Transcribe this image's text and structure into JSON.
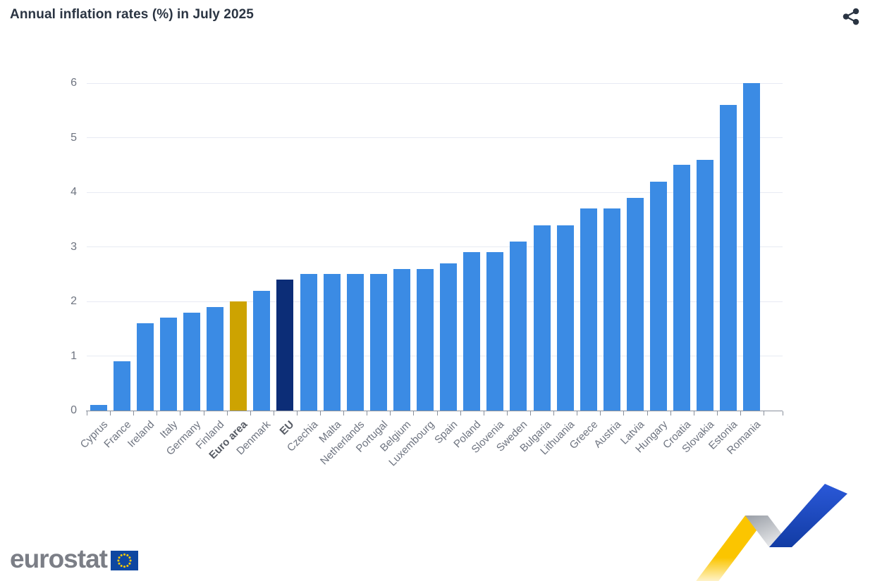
{
  "title": "Annual inflation rates (%) in July 2025",
  "header": {
    "share_icon": "share-icon"
  },
  "chart_data": {
    "type": "bar",
    "title": "Annual inflation rates (%) in July 2025",
    "categories": [
      "Cyprus",
      "France",
      "Ireland",
      "Italy",
      "Germany",
      "Finland",
      "Euro area",
      "Denmark",
      "EU",
      "Czechia",
      "Malta",
      "Netherlands",
      "Portugal",
      "Belgium",
      "Luxembourg",
      "Spain",
      "Poland",
      "Slovenia",
      "Sweden",
      "Bulgaria",
      "Lithuania",
      "Greece",
      "Austria",
      "Latvia",
      "Hungary",
      "Croatia",
      "Slovakia",
      "Estonia",
      "Romania"
    ],
    "values": [
      0.1,
      0.9,
      1.6,
      1.7,
      1.8,
      1.9,
      2.0,
      2.2,
      2.4,
      2.5,
      2.5,
      2.5,
      2.5,
      2.6,
      2.6,
      2.7,
      2.9,
      2.9,
      3.1,
      3.4,
      3.4,
      3.7,
      3.7,
      3.9,
      4.2,
      4.5,
      4.6,
      5.6,
      6.0
    ],
    "emphasized_categories": [
      "Euro area",
      "EU"
    ],
    "xlabel": "",
    "ylabel": "",
    "ylim": [
      0,
      6
    ],
    "yticks": [
      0,
      1,
      2,
      3,
      4,
      5,
      6
    ],
    "grid": true,
    "legend_position": "none",
    "bar_colors": {
      "default": "#3B8BE4",
      "Euro area": "#CDA301",
      "EU": "#0C2D77"
    }
  },
  "footer": {
    "logo_text": "eurostat"
  },
  "colors": {
    "title": "#2B3543",
    "share_icon": "#2B3543",
    "grid": "#E7EAF3",
    "axis_line": "#8A919C",
    "axis_labels": "#6E7480",
    "axis_labels_emphasis": "#565B64",
    "logo_text": "#7B7E86",
    "flag_blue": "#0E47A1",
    "star_yellow": "#FFCC00",
    "ribbon_yellow": "#FBC500",
    "ribbon_gray_dark": "#999EA6",
    "ribbon_gray_light": "#EAEBED",
    "ribbon_blue_light": "#2A58D8",
    "ribbon_blue_dark": "#123CA4"
  }
}
